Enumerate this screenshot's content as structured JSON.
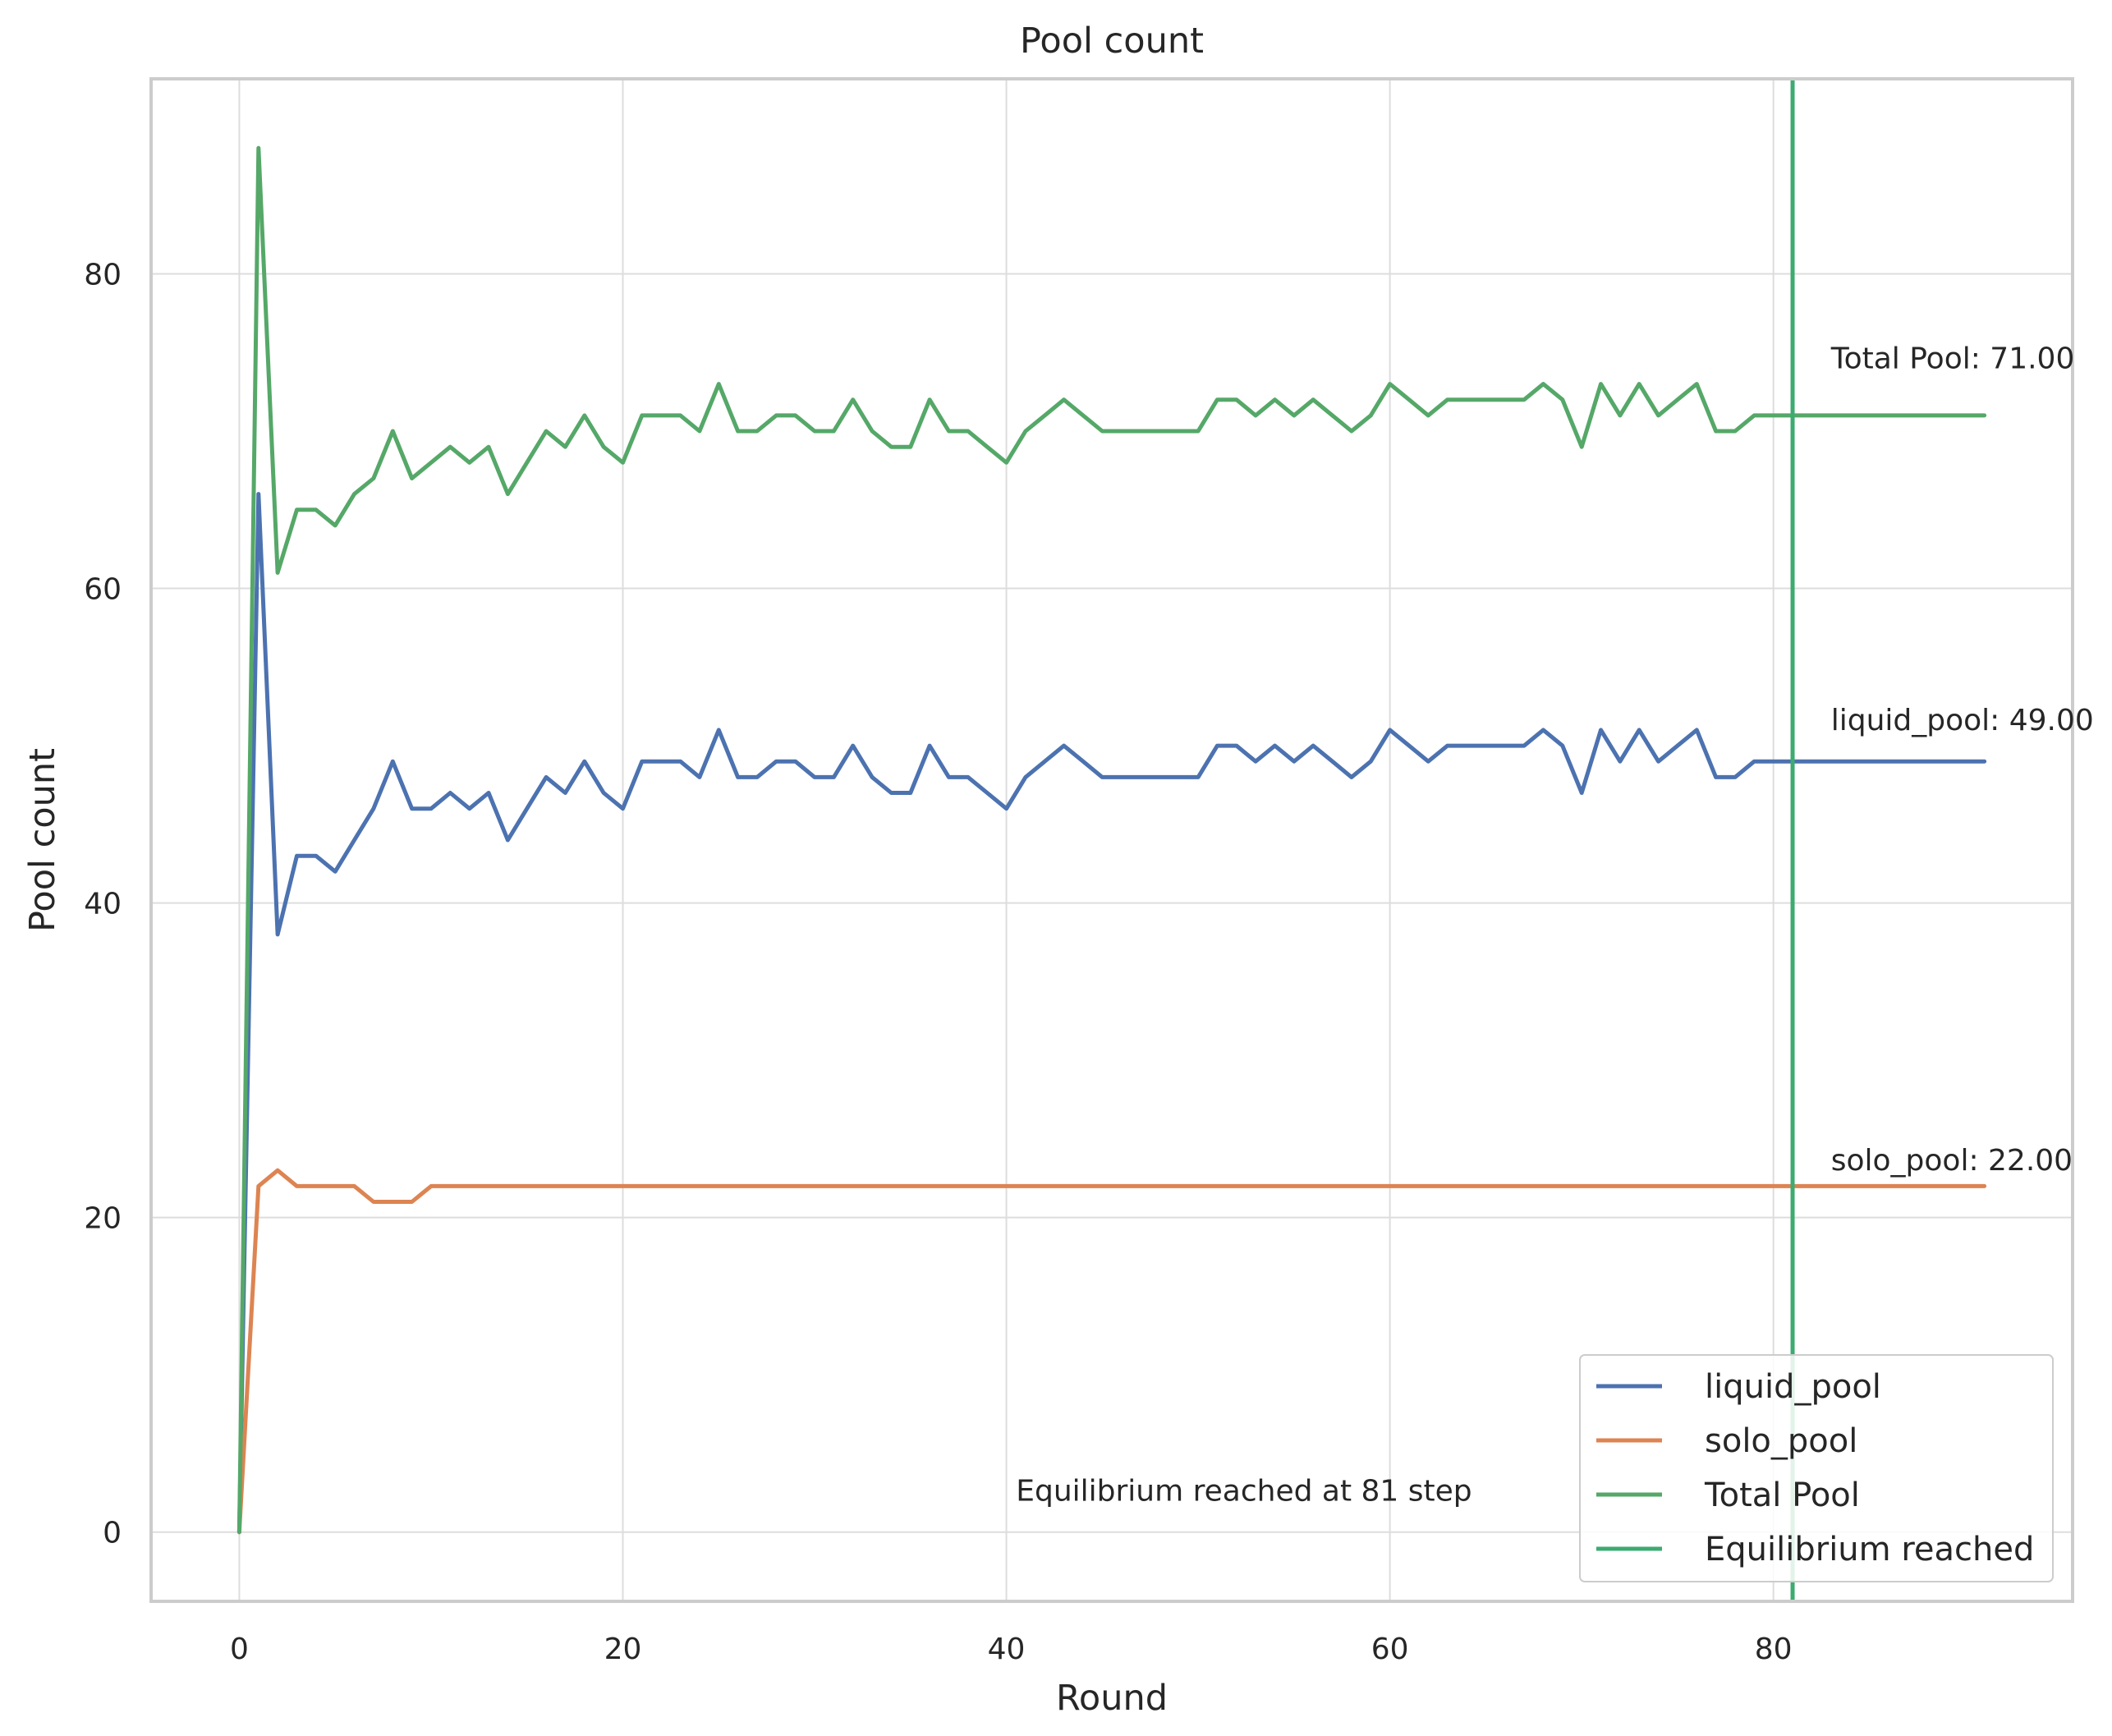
{
  "chart_data": {
    "type": "line",
    "title": "Pool count",
    "xlabel": "Round",
    "ylabel": "Pool count",
    "xlim": [
      -4.6,
      95.6
    ],
    "ylim": [
      -4.4,
      92.4
    ],
    "xticks": [
      0,
      20,
      40,
      60,
      80
    ],
    "yticks": [
      0,
      20,
      40,
      60,
      80
    ],
    "grid": true,
    "legend_position": "lower right",
    "colors": {
      "liquid_pool": "#4c72b0",
      "solo_pool": "#dd8452",
      "total_pool": "#55a868",
      "equilibrium": "#3dab71"
    },
    "x": [
      0,
      1,
      2,
      3,
      4,
      5,
      6,
      7,
      8,
      9,
      10,
      11,
      12,
      13,
      14,
      15,
      16,
      17,
      18,
      19,
      20,
      21,
      22,
      23,
      24,
      25,
      26,
      27,
      28,
      29,
      30,
      31,
      32,
      33,
      34,
      35,
      36,
      37,
      38,
      39,
      40,
      41,
      42,
      43,
      44,
      45,
      46,
      47,
      48,
      49,
      50,
      51,
      52,
      53,
      54,
      55,
      56,
      57,
      58,
      59,
      60,
      61,
      62,
      63,
      64,
      65,
      66,
      67,
      68,
      69,
      70,
      71,
      72,
      73,
      74,
      75,
      76,
      77,
      78,
      79,
      80,
      81,
      82,
      83,
      84,
      85,
      86,
      87,
      88,
      89,
      90,
      91
    ],
    "series": [
      {
        "name": "liquid_pool",
        "values": [
          0,
          66,
          38,
          43,
          43,
          42,
          44,
          46,
          49,
          46,
          46,
          47,
          46,
          47,
          44,
          46,
          48,
          47,
          49,
          47,
          46,
          49,
          49,
          49,
          48,
          51,
          48,
          48,
          49,
          49,
          48,
          48,
          50,
          48,
          47,
          47,
          50,
          48,
          48,
          47,
          46,
          48,
          49,
          50,
          49,
          48,
          48,
          48,
          48,
          48,
          48,
          50,
          50,
          49,
          50,
          49,
          50,
          49,
          48,
          49,
          51,
          50,
          49,
          50,
          50,
          50,
          50,
          50,
          51,
          50,
          47,
          51,
          49,
          51,
          49,
          50,
          51,
          48,
          48,
          49,
          49,
          49,
          49,
          49,
          49,
          49,
          49,
          49,
          49,
          49,
          49,
          49
        ]
      },
      {
        "name": "solo_pool",
        "values": [
          0,
          22,
          23,
          22,
          22,
          22,
          22,
          21,
          21,
          21,
          22,
          22,
          22,
          22,
          22,
          22,
          22,
          22,
          22,
          22,
          22,
          22,
          22,
          22,
          22,
          22,
          22,
          22,
          22,
          22,
          22,
          22,
          22,
          22,
          22,
          22,
          22,
          22,
          22,
          22,
          22,
          22,
          22,
          22,
          22,
          22,
          22,
          22,
          22,
          22,
          22,
          22,
          22,
          22,
          22,
          22,
          22,
          22,
          22,
          22,
          22,
          22,
          22,
          22,
          22,
          22,
          22,
          22,
          22,
          22,
          22,
          22,
          22,
          22,
          22,
          22,
          22,
          22,
          22,
          22,
          22,
          22,
          22,
          22,
          22,
          22,
          22,
          22,
          22,
          22,
          22,
          22
        ]
      },
      {
        "name": "Total Pool",
        "values": [
          0,
          88,
          61,
          65,
          65,
          64,
          66,
          67,
          70,
          67,
          68,
          69,
          68,
          69,
          66,
          68,
          70,
          69,
          71,
          69,
          68,
          71,
          71,
          71,
          70,
          73,
          70,
          70,
          71,
          71,
          70,
          70,
          72,
          70,
          69,
          69,
          72,
          70,
          70,
          69,
          68,
          70,
          71,
          72,
          71,
          70,
          70,
          70,
          70,
          70,
          70,
          72,
          72,
          71,
          72,
          71,
          72,
          71,
          70,
          71,
          73,
          72,
          71,
          72,
          72,
          72,
          72,
          72,
          73,
          72,
          69,
          73,
          71,
          73,
          71,
          72,
          73,
          70,
          70,
          71,
          71,
          71,
          71,
          71,
          71,
          71,
          71,
          71,
          71,
          71,
          71,
          71
        ]
      }
    ],
    "equilibrium": {
      "name": "Equilibrium reached",
      "x": 81
    },
    "annotations": [
      {
        "text": "Total Pool: 71.00",
        "x": 83,
        "y": 74
      },
      {
        "text": "liquid_pool: 49.00",
        "x": 83,
        "y": 51
      },
      {
        "text": "solo_pool: 22.00",
        "x": 83,
        "y": 23
      },
      {
        "text": "Equilibrium reached at 81 step",
        "x": 40.5,
        "y": 2
      }
    ],
    "legend": [
      "liquid_pool",
      "solo_pool",
      "Total Pool",
      "Equilibrium reached"
    ]
  }
}
